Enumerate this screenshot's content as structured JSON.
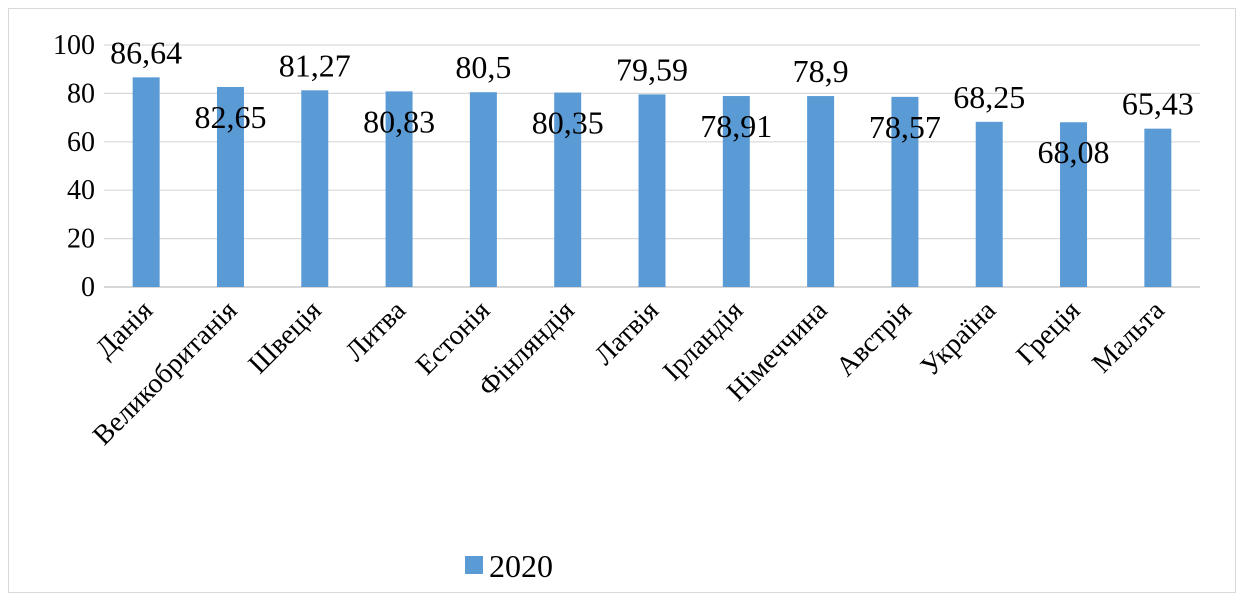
{
  "chart_data": {
    "type": "bar",
    "categories": [
      "Данія",
      "Великобританія",
      "Швеція",
      "Литва",
      "Естонія",
      "Фінляндія",
      "Латвія",
      "Ірландія",
      "Німеччина",
      "Австрія",
      "Україна",
      "Греція",
      "Мальта"
    ],
    "series": [
      {
        "name": "2020",
        "values": [
          86.64,
          82.65,
          81.27,
          80.83,
          80.5,
          80.35,
          79.59,
          78.91,
          78.9,
          78.57,
          68.25,
          68.08,
          65.43
        ],
        "labels": [
          "86,64",
          "82,65",
          "81,27",
          "80,83",
          "80,5",
          "80,35",
          "79,59",
          "78,91",
          "78,9",
          "78,57",
          "68,25",
          "68,08",
          "65,43"
        ],
        "label_position": [
          "above",
          "below",
          "above",
          "below",
          "above",
          "below",
          "above",
          "below",
          "above",
          "below",
          "above",
          "below",
          "above"
        ]
      }
    ],
    "ylim": [
      0,
      100
    ],
    "yticks": [
      0,
      20,
      40,
      60,
      80,
      100
    ],
    "title": "",
    "xlabel": "",
    "ylabel": "",
    "grid": true,
    "legend_position": "bottom",
    "colors": {
      "bar": "#5b9bd5",
      "grid": "#d9d9d9",
      "axis": "#bfbfbf"
    }
  }
}
